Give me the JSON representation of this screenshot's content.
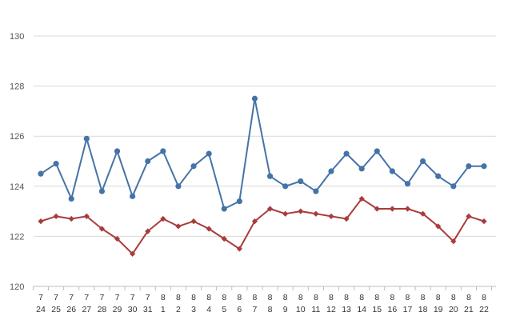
{
  "chart_data": {
    "type": "line",
    "title": "",
    "xlabel": "",
    "ylabel": "",
    "ylim": [
      120,
      130
    ],
    "yticks": [
      120,
      122,
      124,
      126,
      128,
      130
    ],
    "grid": true,
    "categories": [
      [
        "7",
        "24"
      ],
      [
        "7",
        "25"
      ],
      [
        "7",
        "26"
      ],
      [
        "7",
        "27"
      ],
      [
        "7",
        "28"
      ],
      [
        "7",
        "29"
      ],
      [
        "7",
        "30"
      ],
      [
        "7",
        "31"
      ],
      [
        "8",
        "1"
      ],
      [
        "8",
        "2"
      ],
      [
        "8",
        "3"
      ],
      [
        "8",
        "4"
      ],
      [
        "8",
        "5"
      ],
      [
        "8",
        "6"
      ],
      [
        "8",
        "7"
      ],
      [
        "8",
        "8"
      ],
      [
        "8",
        "9"
      ],
      [
        "8",
        "10"
      ],
      [
        "8",
        "11"
      ],
      [
        "8",
        "12"
      ],
      [
        "8",
        "13"
      ],
      [
        "8",
        "14"
      ],
      [
        "8",
        "15"
      ],
      [
        "8",
        "16"
      ],
      [
        "8",
        "17"
      ],
      [
        "8",
        "18"
      ],
      [
        "8",
        "19"
      ],
      [
        "8",
        "20"
      ],
      [
        "8",
        "21"
      ],
      [
        "8",
        "22"
      ]
    ],
    "series": [
      {
        "color": "#4573a8",
        "marker": "circle",
        "values": [
          124.5,
          124.9,
          123.5,
          125.9,
          123.8,
          125.4,
          123.6,
          125.0,
          125.4,
          124.0,
          124.8,
          125.3,
          123.1,
          123.4,
          127.5,
          124.4,
          124.0,
          124.2,
          123.8,
          124.6,
          125.3,
          124.7,
          125.4,
          124.6,
          124.1,
          125.0,
          124.4,
          124.0,
          124.8,
          124.8
        ]
      },
      {
        "color": "#a83c3c",
        "marker": "diamond",
        "values": [
          122.6,
          122.8,
          122.7,
          122.8,
          122.3,
          121.9,
          121.3,
          122.2,
          122.7,
          122.4,
          122.6,
          122.3,
          121.9,
          121.5,
          122.6,
          123.1,
          122.9,
          123.0,
          122.9,
          122.8,
          122.7,
          123.5,
          123.1,
          123.1,
          123.1,
          122.9,
          122.4,
          121.8,
          122.8,
          122.6
        ]
      }
    ]
  }
}
